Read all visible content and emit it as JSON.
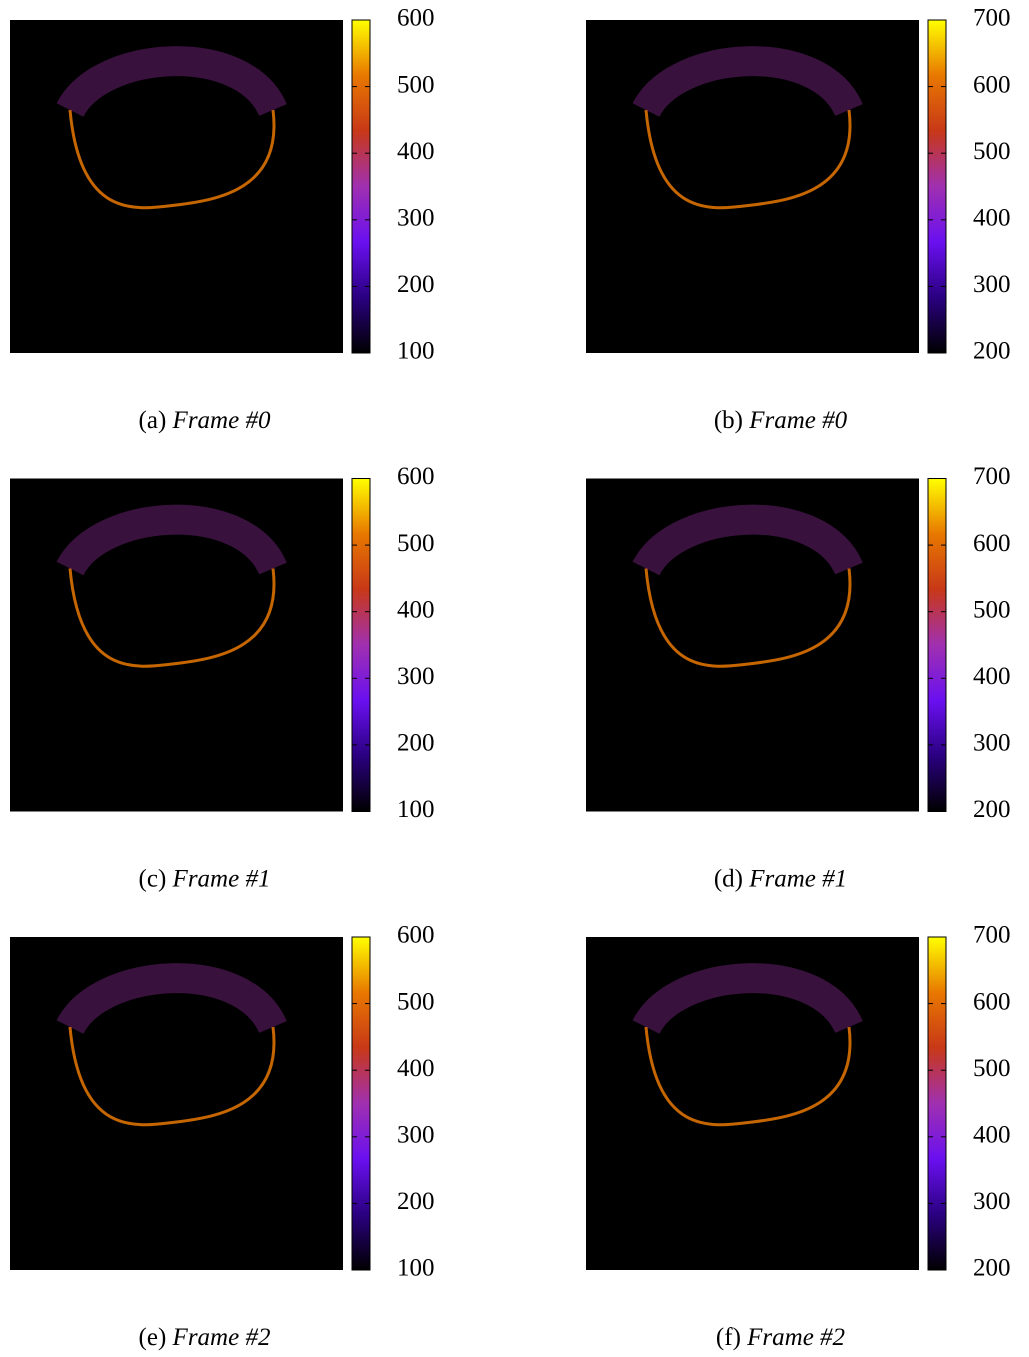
{
  "chart_data": [
    {
      "type": "heatmap",
      "label": "(a)",
      "caption": "Frame #0",
      "zlim": [
        100,
        600
      ],
      "zticks": [
        100,
        200,
        300,
        400,
        500,
        600
      ],
      "colors": [
        "#000000",
        "#2a0080",
        "#6a10f0",
        "#a030b0",
        "#c83818",
        "#e87800",
        "#ffff00"
      ]
    },
    {
      "type": "heatmap",
      "label": "(b)",
      "caption": "Frame #0",
      "zlim": [
        200,
        700
      ],
      "zticks": [
        200,
        300,
        400,
        500,
        600,
        700
      ],
      "colors": [
        "#000000",
        "#2a0080",
        "#6a10f0",
        "#a030b0",
        "#c83818",
        "#e87800",
        "#ffff00"
      ]
    },
    {
      "type": "heatmap",
      "label": "(c)",
      "caption": "Frame #1",
      "zlim": [
        100,
        600
      ],
      "zticks": [
        100,
        200,
        300,
        400,
        500,
        600
      ],
      "colors": [
        "#000000",
        "#2a0080",
        "#6a10f0",
        "#a030b0",
        "#c83818",
        "#e87800",
        "#ffff00"
      ]
    },
    {
      "type": "heatmap",
      "label": "(d)",
      "caption": "Frame #1",
      "zlim": [
        200,
        700
      ],
      "zticks": [
        200,
        300,
        400,
        500,
        600,
        700
      ],
      "colors": [
        "#000000",
        "#2a0080",
        "#6a10f0",
        "#a030b0",
        "#c83818",
        "#e87800",
        "#ffff00"
      ]
    },
    {
      "type": "heatmap",
      "label": "(e)",
      "caption": "Frame #2",
      "zlim": [
        100,
        600
      ],
      "zticks": [
        100,
        200,
        300,
        400,
        500,
        600
      ],
      "colors": [
        "#000000",
        "#2a0080",
        "#6a10f0",
        "#a030b0",
        "#c83818",
        "#e87800",
        "#ffff00"
      ]
    },
    {
      "type": "heatmap",
      "label": "(f)",
      "caption": "Frame #2",
      "zlim": [
        200,
        700
      ],
      "zticks": [
        200,
        300,
        400,
        500,
        600,
        700
      ],
      "colors": [
        "#000000",
        "#2a0080",
        "#6a10f0",
        "#a030b0",
        "#c83818",
        "#e87800",
        "#ffff00"
      ]
    }
  ]
}
